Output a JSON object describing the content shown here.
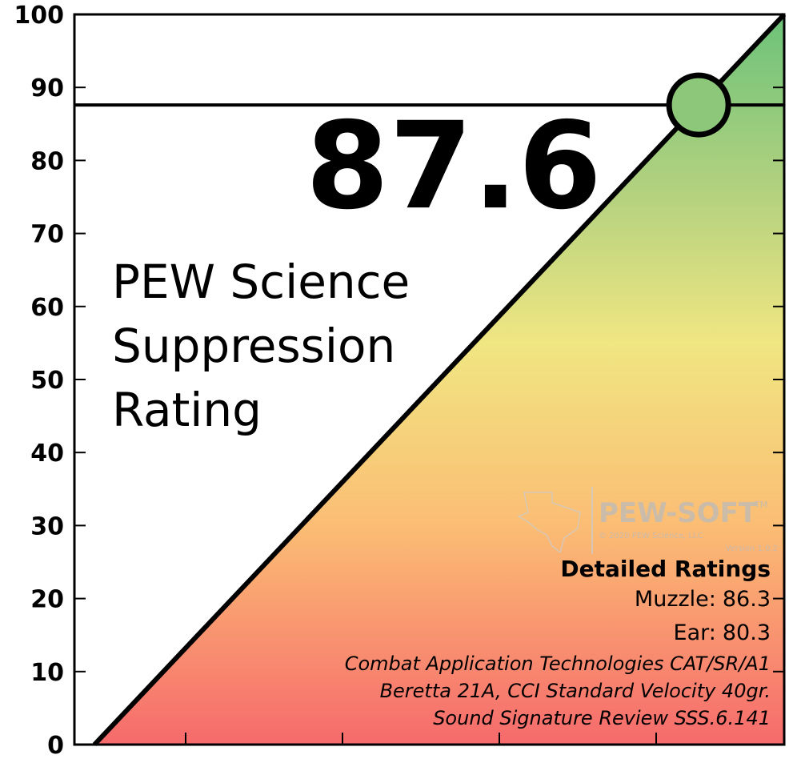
{
  "chart_data": {
    "type": "line",
    "value": 87.6,
    "title_lines": [
      "PEW Science",
      "Suppression",
      "Rating"
    ],
    "ylim": [
      0,
      100
    ],
    "yticks": [
      0,
      10,
      20,
      30,
      40,
      50,
      60,
      70,
      80,
      90,
      100
    ],
    "details": {
      "heading": "Detailed Ratings",
      "muzzle_label": "Muzzle:",
      "muzzle": 86.3,
      "ear_label": "Ear:",
      "ear": 80.3,
      "notes": [
        "Combat Application Technologies CAT/SR/A1",
        "Beretta 21A, CCI Standard Velocity 40gr.",
        "Sound Signature Review SSS.6.141"
      ]
    },
    "watermark": {
      "brand": "PEW-SOFT",
      "trademark": "TM",
      "copyright": "© 2020 PEW Science, LLC",
      "version": "Version 1.0.2"
    },
    "marker_color": "#8cc77a"
  }
}
